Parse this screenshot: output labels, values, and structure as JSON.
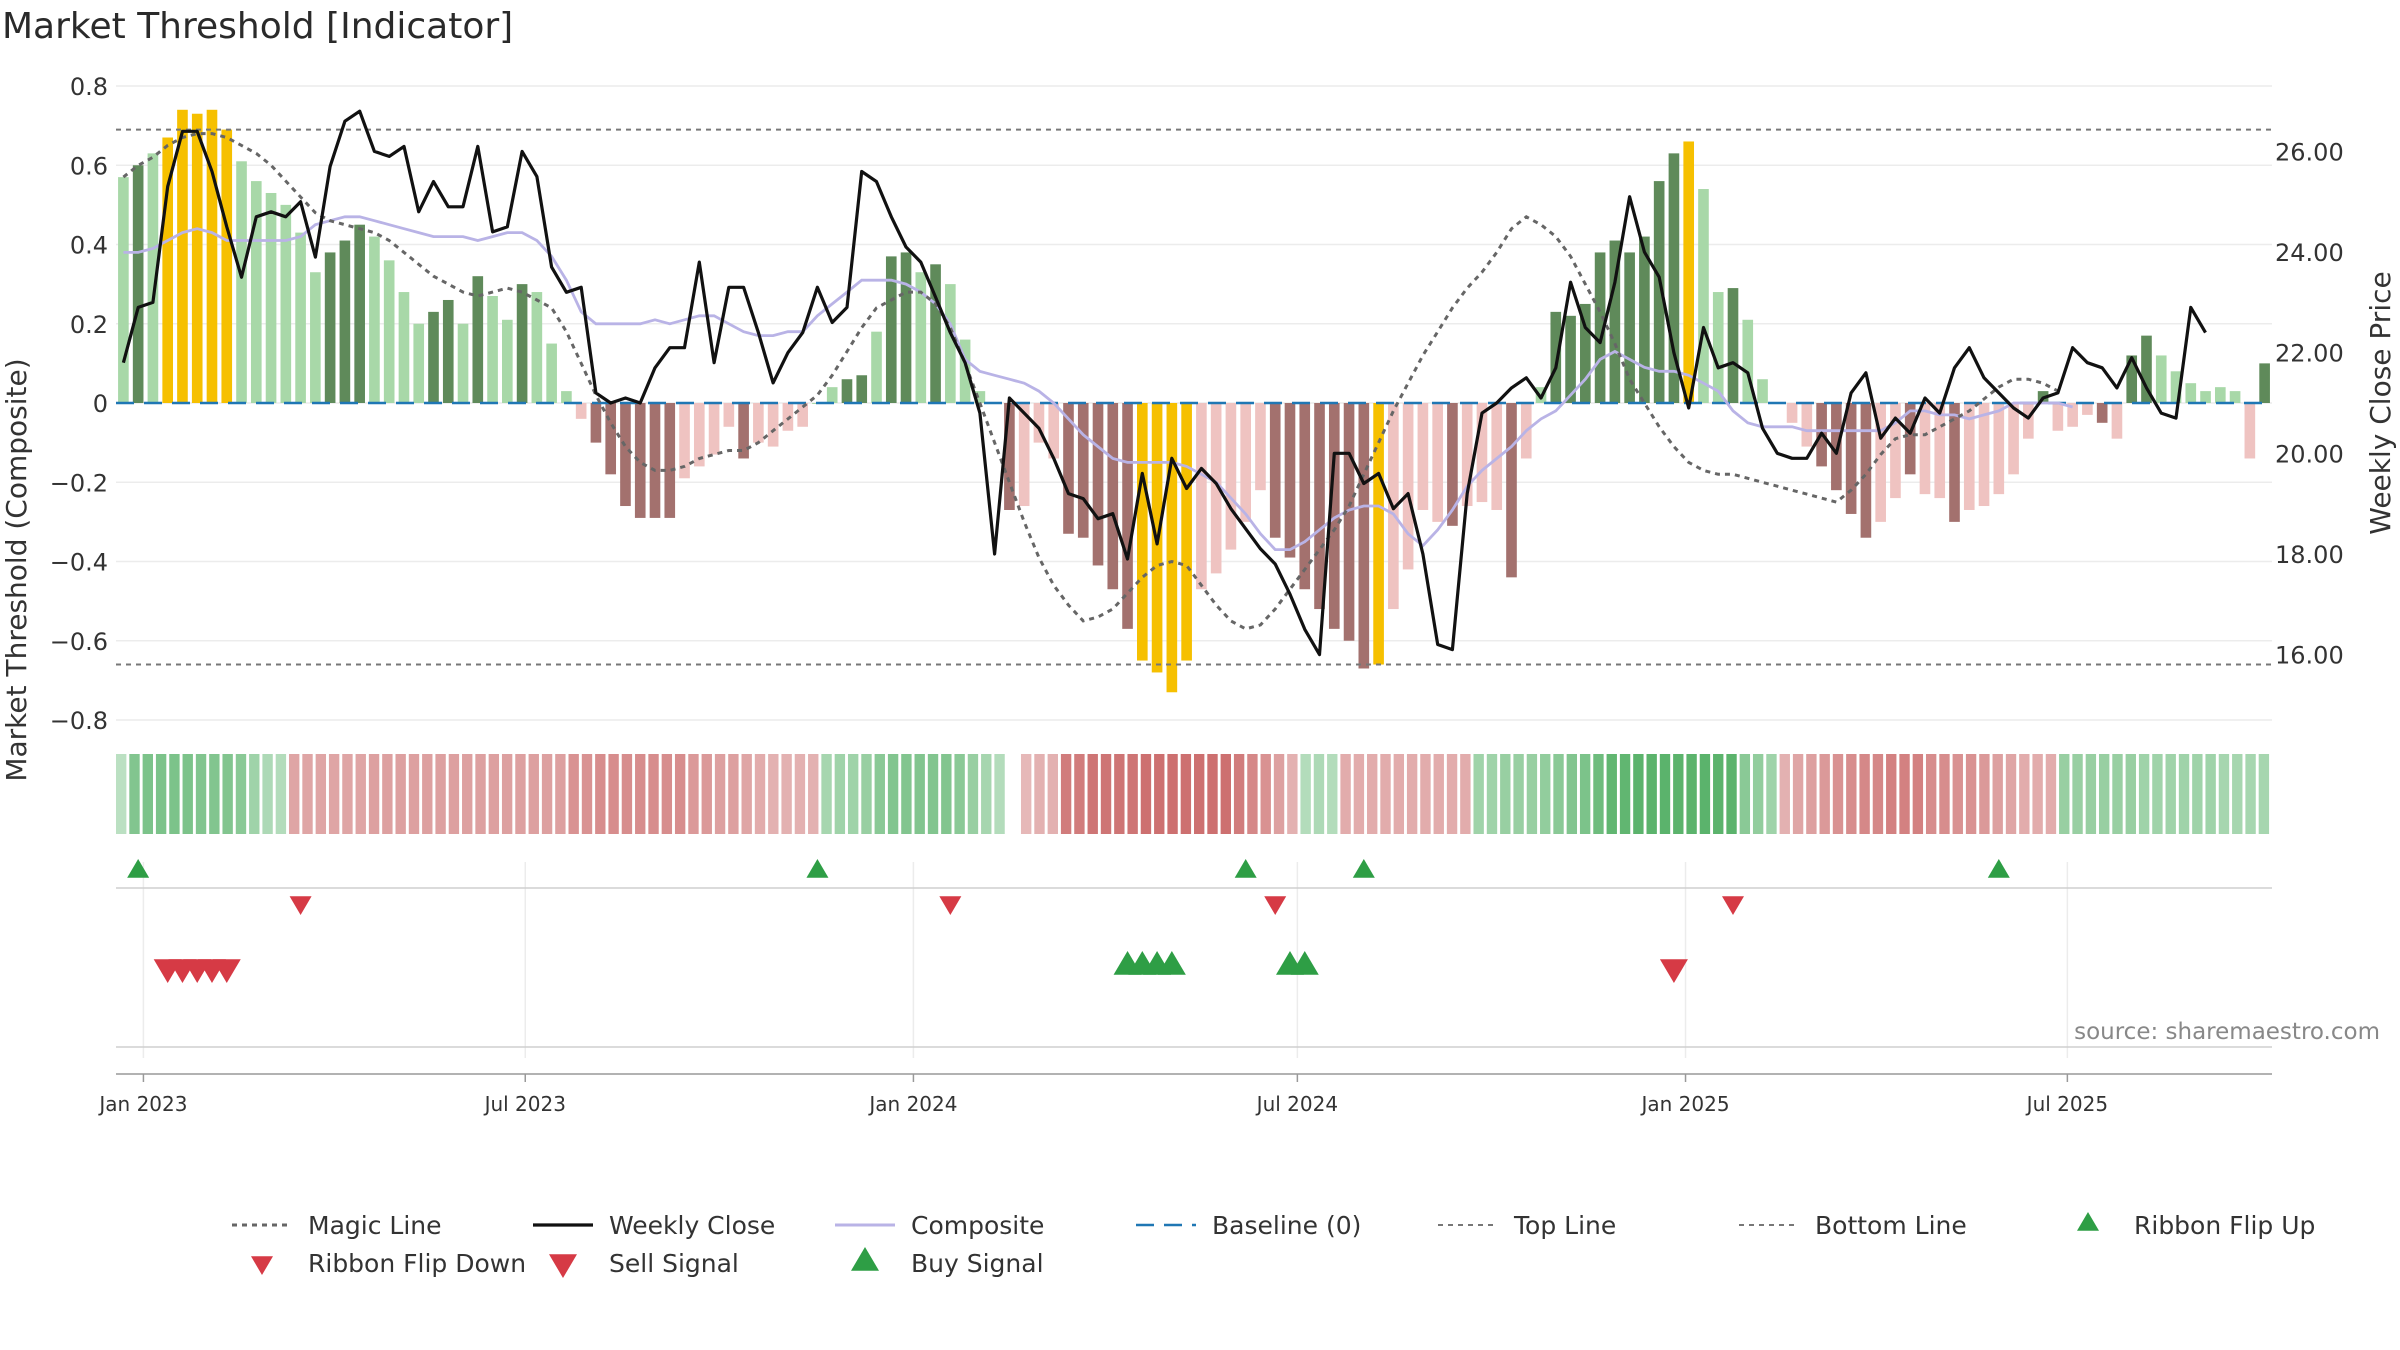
{
  "title": "Market Threshold [Indicator]",
  "source": "source: sharemaestro.com",
  "colors": {
    "accent_yellow": "#f6c000",
    "green_dark": "#5f8a5a",
    "green_light": "#a8d8a8",
    "red_dark": "#a3716e",
    "red_light": "#efc3c1",
    "close": "#111111",
    "composite": "#b9b3e6",
    "magic": "#666666",
    "baseline": "#1f77b4",
    "signal_green": "#2e9e45",
    "signal_red": "#d63a45"
  },
  "chart_data": {
    "type": "bar",
    "title": "Market Threshold [Indicator]",
    "ylabel": "Market Threshold (Composite)",
    "y2label": "Weekly Close Price",
    "ylim": [
      -0.8,
      0.8
    ],
    "y2lim": [
      14.7,
      27.3
    ],
    "yticks": [
      "0.8",
      "0.6",
      "0.4",
      "0.2",
      "0",
      "−0.2",
      "−0.4",
      "−0.6",
      "−0.8"
    ],
    "y2ticks": [
      "26.00",
      "24.00",
      "22.00",
      "20.00",
      "18.00",
      "16.00"
    ],
    "xticks": [
      "Jan 2023",
      "Jul 2023",
      "Jan 2024",
      "Jul 2024",
      "Jan 2025",
      "Jul 2025"
    ],
    "top_line": 0.69,
    "bottom_line": -0.66,
    "magic_line": [
      0.57,
      0.6,
      0.62,
      0.65,
      0.67,
      0.68,
      0.68,
      0.67,
      0.65,
      0.63,
      0.6,
      0.56,
      0.52,
      0.48,
      0.46,
      0.45,
      0.44,
      0.43,
      0.41,
      0.38,
      0.35,
      0.32,
      0.3,
      0.28,
      0.27,
      0.28,
      0.29,
      0.28,
      0.26,
      0.24,
      0.18,
      0.1,
      0.02,
      -0.05,
      -0.11,
      -0.15,
      -0.17,
      -0.17,
      -0.16,
      -0.14,
      -0.13,
      -0.12,
      -0.12,
      -0.1,
      -0.07,
      -0.04,
      -0.01,
      0.02,
      0.07,
      0.13,
      0.19,
      0.24,
      0.26,
      0.28,
      0.28,
      0.25,
      0.19,
      0.1,
      0.0,
      -0.1,
      -0.2,
      -0.3,
      -0.39,
      -0.46,
      -0.51,
      -0.55,
      -0.54,
      -0.52,
      -0.48,
      -0.44,
      -0.41,
      -0.4,
      -0.41,
      -0.46,
      -0.51,
      -0.55,
      -0.57,
      -0.56,
      -0.52,
      -0.47,
      -0.42,
      -0.37,
      -0.32,
      -0.26,
      -0.18,
      -0.1,
      -0.02,
      0.05,
      0.12,
      0.18,
      0.24,
      0.29,
      0.33,
      0.38,
      0.44,
      0.47,
      0.45,
      0.42,
      0.37,
      0.3,
      0.23,
      0.15,
      0.06,
      0.0,
      -0.06,
      -0.11,
      -0.15,
      -0.17,
      -0.18,
      -0.18,
      -0.19,
      -0.2,
      -0.21,
      -0.22,
      -0.23,
      -0.24,
      -0.25,
      -0.22,
      -0.18,
      -0.13,
      -0.09,
      -0.08,
      -0.08,
      -0.06,
      -0.04,
      -0.02,
      0.01,
      0.04,
      0.06,
      0.06,
      0.05,
      0.03
    ],
    "composite": [
      0.38,
      0.38,
      0.39,
      0.41,
      0.43,
      0.44,
      0.43,
      0.41,
      0.41,
      0.41,
      0.41,
      0.41,
      0.42,
      0.45,
      0.46,
      0.47,
      0.47,
      0.46,
      0.45,
      0.44,
      0.43,
      0.42,
      0.42,
      0.42,
      0.41,
      0.42,
      0.43,
      0.43,
      0.41,
      0.37,
      0.31,
      0.23,
      0.2,
      0.2,
      0.2,
      0.2,
      0.21,
      0.2,
      0.21,
      0.22,
      0.22,
      0.2,
      0.18,
      0.17,
      0.17,
      0.18,
      0.18,
      0.22,
      0.25,
      0.28,
      0.31,
      0.31,
      0.31,
      0.3,
      0.28,
      0.25,
      0.2,
      0.11,
      0.08,
      0.07,
      0.06,
      0.05,
      0.03,
      0.0,
      -0.04,
      -0.08,
      -0.11,
      -0.14,
      -0.15,
      -0.15,
      -0.15,
      -0.15,
      -0.16,
      -0.18,
      -0.2,
      -0.24,
      -0.28,
      -0.33,
      -0.37,
      -0.37,
      -0.35,
      -0.32,
      -0.29,
      -0.27,
      -0.26,
      -0.26,
      -0.28,
      -0.33,
      -0.36,
      -0.32,
      -0.27,
      -0.21,
      -0.17,
      -0.14,
      -0.11,
      -0.07,
      -0.04,
      -0.02,
      0.02,
      0.06,
      0.11,
      0.13,
      0.11,
      0.09,
      0.08,
      0.08,
      0.07,
      0.05,
      0.03,
      -0.02,
      -0.05,
      -0.06,
      -0.06,
      -0.06,
      -0.07,
      -0.07,
      -0.07,
      -0.07,
      -0.07,
      -0.07,
      -0.05,
      -0.02,
      -0.02,
      -0.03,
      -0.03,
      -0.04,
      -0.03,
      -0.02,
      0.0,
      0.0,
      0.0,
      0.0,
      -0.01
    ],
    "bars": [
      0.57,
      0.6,
      0.63,
      0.67,
      0.74,
      0.73,
      0.74,
      0.69,
      0.61,
      0.56,
      0.53,
      0.5,
      0.43,
      0.33,
      0.38,
      0.41,
      0.45,
      0.42,
      0.36,
      0.28,
      0.2,
      0.23,
      0.26,
      0.2,
      0.32,
      0.27,
      0.21,
      0.3,
      0.28,
      0.15,
      0.03,
      -0.04,
      -0.1,
      -0.18,
      -0.26,
      -0.29,
      -0.29,
      -0.29,
      -0.19,
      -0.16,
      -0.13,
      -0.06,
      -0.14,
      -0.1,
      -0.11,
      -0.07,
      -0.06,
      0.0,
      0.04,
      0.06,
      0.07,
      0.18,
      0.37,
      0.38,
      0.33,
      0.35,
      0.3,
      0.16,
      0.03,
      0.0,
      -0.27,
      -0.26,
      -0.1,
      -0.14,
      -0.33,
      -0.34,
      -0.41,
      -0.47,
      -0.57,
      -0.65,
      -0.68,
      -0.73,
      -0.65,
      -0.47,
      -0.43,
      -0.37,
      -0.3,
      -0.22,
      -0.34,
      -0.39,
      -0.47,
      -0.52,
      -0.57,
      -0.6,
      -0.67,
      -0.66,
      -0.52,
      -0.42,
      -0.27,
      -0.3,
      -0.31,
      -0.26,
      -0.25,
      -0.27,
      -0.44,
      -0.14,
      0.04,
      0.23,
      0.22,
      0.25,
      0.38,
      0.41,
      0.38,
      0.42,
      0.56,
      0.63,
      0.66,
      0.54,
      0.28,
      0.29,
      0.21,
      0.06,
      0.0,
      -0.05,
      -0.11,
      -0.16,
      -0.22,
      -0.28,
      -0.34,
      -0.3,
      -0.24,
      -0.18,
      -0.23,
      -0.24,
      -0.3,
      -0.27,
      -0.26,
      -0.23,
      -0.18,
      -0.09,
      0.03,
      -0.07,
      -0.06,
      -0.03,
      -0.05,
      -0.09,
      0.12,
      0.17,
      0.12,
      0.08,
      0.05,
      0.03,
      0.04,
      0.03,
      -0.14,
      0.1
    ],
    "bar_styles": [
      "L",
      "D",
      "L",
      "Y",
      "Y",
      "Y",
      "Y",
      "Y",
      "L",
      "L",
      "L",
      "L",
      "L",
      "L",
      "D",
      "D",
      "D",
      "L",
      "L",
      "L",
      "L",
      "D",
      "D",
      "L",
      "D",
      "L",
      "L",
      "D",
      "L",
      "L",
      "L",
      "L",
      "D",
      "D",
      "D",
      "D",
      "D",
      "D",
      "L",
      "L",
      "L",
      "L",
      "D",
      "L",
      "L",
      "L",
      "L",
      "L",
      "L",
      "D",
      "D",
      "L",
      "D",
      "D",
      "L",
      "D",
      "L",
      "L",
      "L",
      "L",
      "D",
      "L",
      "L",
      "L",
      "D",
      "D",
      "D",
      "D",
      "D",
      "Y",
      "Y",
      "Y",
      "Y",
      "L",
      "L",
      "L",
      "L",
      "L",
      "D",
      "D",
      "D",
      "D",
      "D",
      "D",
      "D",
      "Y",
      "L",
      "L",
      "L",
      "L",
      "D",
      "L",
      "L",
      "L",
      "D",
      "L",
      "L",
      "D",
      "D",
      "D",
      "D",
      "D",
      "D",
      "D",
      "D",
      "D",
      "Y",
      "L",
      "L",
      "D",
      "L",
      "L",
      "L",
      "L",
      "L",
      "D",
      "D",
      "D",
      "D",
      "L",
      "L",
      "D",
      "L",
      "L",
      "D",
      "L",
      "L",
      "L",
      "L",
      "L",
      "D",
      "L",
      "L",
      "L",
      "D",
      "L",
      "D",
      "D",
      "L",
      "L",
      "L",
      "L",
      "L",
      "L",
      "L",
      "D"
    ],
    "weekly_close": [
      21.8,
      22.9,
      23.0,
      25.3,
      26.4,
      26.4,
      25.6,
      24.5,
      23.5,
      24.7,
      24.8,
      24.7,
      25.0,
      23.9,
      25.7,
      26.6,
      26.8,
      26.0,
      25.9,
      26.1,
      24.8,
      25.4,
      24.9,
      24.9,
      26.1,
      24.4,
      24.5,
      26.0,
      25.5,
      23.7,
      23.2,
      23.3,
      21.2,
      21.0,
      21.1,
      21.0,
      21.7,
      22.1,
      22.1,
      23.8,
      21.8,
      23.3,
      23.3,
      22.4,
      21.4,
      22.0,
      22.4,
      23.3,
      22.6,
      22.9,
      25.6,
      25.4,
      24.7,
      24.1,
      23.8,
      23.1,
      22.4,
      21.8,
      20.8,
      18.0,
      21.1,
      20.8,
      20.5,
      19.9,
      19.2,
      19.1,
      18.7,
      18.8,
      17.9,
      19.6,
      18.2,
      19.9,
      19.3,
      19.7,
      19.4,
      18.9,
      18.5,
      18.1,
      17.8,
      17.2,
      16.5,
      16.0,
      20.0,
      20.0,
      19.4,
      19.6,
      18.9,
      19.2,
      18.0,
      16.2,
      16.1,
      19.2,
      20.8,
      21.0,
      21.3,
      21.5,
      21.1,
      21.7,
      23.4,
      22.5,
      22.2,
      23.4,
      25.1,
      24.0,
      23.5,
      22.0,
      20.9,
      22.5,
      21.7,
      21.8,
      21.6,
      20.5,
      20.0,
      19.9,
      19.9,
      20.4,
      20.0,
      21.2,
      21.6,
      20.3,
      20.7,
      20.4,
      21.1,
      20.8,
      21.7,
      22.1,
      21.5,
      21.2,
      20.9,
      20.7,
      21.1,
      21.2,
      22.1,
      21.8,
      21.7,
      21.3,
      21.9,
      21.3,
      20.8,
      20.7,
      22.9,
      22.4
    ],
    "ribbon": [
      0.15,
      0.55,
      0.6,
      0.6,
      0.6,
      0.6,
      0.55,
      0.55,
      0.55,
      0.5,
      0.35,
      0.25,
      0.2,
      -0.4,
      -0.4,
      -0.4,
      -0.4,
      -0.4,
      -0.4,
      -0.45,
      -0.45,
      -0.45,
      -0.45,
      -0.45,
      -0.45,
      -0.45,
      -0.45,
      -0.45,
      -0.45,
      -0.45,
      -0.45,
      -0.45,
      -0.45,
      -0.45,
      -0.55,
      -0.55,
      -0.6,
      -0.6,
      -0.6,
      -0.6,
      -0.6,
      -0.6,
      -0.6,
      -0.5,
      -0.5,
      -0.45,
      -0.45,
      -0.4,
      -0.35,
      -0.3,
      -0.3,
      -0.3,
      -0.3,
      0.3,
      0.35,
      0.35,
      0.4,
      0.5,
      0.55,
      0.55,
      0.55,
      0.55,
      0.55,
      0.5,
      0.4,
      0.3,
      0.2,
      0.2,
      -0.25,
      -0.3,
      -0.3,
      -0.75,
      -0.75,
      -0.8,
      -0.8,
      -0.8,
      -0.8,
      -0.85,
      -0.85,
      -0.85,
      -0.85,
      -0.85,
      -0.85,
      -0.85,
      -0.75,
      -0.65,
      -0.55,
      -0.45,
      -0.3,
      0.2,
      0.25,
      0.2,
      -0.35,
      -0.35,
      -0.35,
      -0.35,
      -0.35,
      -0.35,
      -0.35,
      -0.35,
      -0.35,
      -0.35,
      0.35,
      0.35,
      0.4,
      0.4,
      0.4,
      0.45,
      0.5,
      0.55,
      0.6,
      0.7,
      0.8,
      0.8,
      0.85,
      0.85,
      0.85,
      0.85,
      0.85,
      0.85,
      0.85,
      0.85,
      0.5,
      0.45,
      0.35,
      -0.3,
      -0.4,
      -0.45,
      -0.5,
      -0.55,
      -0.6,
      -0.65,
      -0.65,
      -0.7,
      -0.7,
      -0.7,
      -0.6,
      -0.6,
      -0.55,
      -0.55,
      -0.5,
      -0.45,
      -0.4,
      -0.35,
      -0.35,
      -0.35,
      0.4,
      0.4,
      0.4,
      0.4,
      0.4,
      0.4,
      0.35,
      0.35,
      0.35,
      0.35,
      0.35,
      0.35,
      0.3,
      0.3,
      0.3,
      0.3
    ],
    "ribbon_gap_index": 67,
    "signals": {
      "ribbon_flip_up": [
        "2022-12-26",
        "2023-11-13",
        "2024-06-03",
        "2024-07-29",
        "2025-05-26"
      ],
      "ribbon_flip_down": [
        "2023-03-13",
        "2024-01-15",
        "2024-06-17",
        "2025-01-20"
      ],
      "sell_signal": [
        "2023-01-09",
        "2023-01-16",
        "2023-01-23",
        "2023-01-30",
        "2023-02-06",
        "2024-12-23"
      ],
      "buy_signal": [
        "2024-04-08",
        "2024-04-15",
        "2024-04-22",
        "2024-04-29",
        "2024-06-24",
        "2024-07-01"
      ]
    },
    "legend": [
      {
        "key": "magic",
        "label": "Magic Line"
      },
      {
        "key": "close",
        "label": "Weekly Close"
      },
      {
        "key": "composite",
        "label": "Composite"
      },
      {
        "key": "baseline",
        "label": "Baseline (0)"
      },
      {
        "key": "top",
        "label": "Top Line"
      },
      {
        "key": "bottom",
        "label": "Bottom Line"
      },
      {
        "key": "flipup",
        "label": "Ribbon Flip Up"
      },
      {
        "key": "flipdown",
        "label": "Ribbon Flip Down"
      },
      {
        "key": "sell",
        "label": "Sell Signal"
      },
      {
        "key": "buy",
        "label": "Buy Signal"
      }
    ]
  }
}
